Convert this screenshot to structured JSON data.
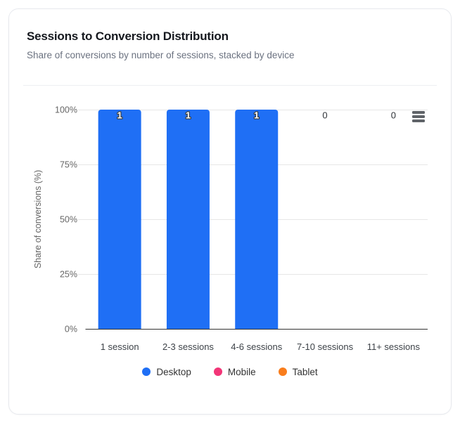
{
  "card": {
    "title": "Sessions to Conversion Distribution",
    "subtitle": "Share of conversions by number of sessions, stacked by device"
  },
  "icons": {
    "menu": "hamburger-menu-icon"
  },
  "chart_data": {
    "type": "bar",
    "stacked": true,
    "orientation": "vertical",
    "categories": [
      "1 session",
      "2-3 sessions",
      "4-6 sessions",
      "7-10 sessions",
      "11+ sessions"
    ],
    "series": [
      {
        "name": "Desktop",
        "color": "#1f6ff5",
        "values": [
          100,
          100,
          100,
          0,
          0
        ]
      },
      {
        "name": "Mobile",
        "color": "#f23577",
        "values": [
          0,
          0,
          0,
          0,
          0
        ]
      },
      {
        "name": "Tablet",
        "color": "#f97d1c",
        "values": [
          0,
          0,
          0,
          0,
          0
        ]
      }
    ],
    "stack_total_labels": [
      "1",
      "1",
      "1",
      "0",
      "0"
    ],
    "xlabel": "",
    "ylabel": "Share of conversions (%)",
    "yticks": [
      "0%",
      "25%",
      "50%",
      "75%",
      "100%"
    ],
    "ylim": [
      0,
      100
    ],
    "grid": true,
    "legend_position": "bottom",
    "colors": {
      "grid_line": "#e6e6e6",
      "axis_line": "#333333",
      "tick_label": "#666666",
      "category_label": "#3d4248",
      "axis_title": "#666666",
      "bar_label_fill": "#ffffff",
      "bar_label_stroke": "#3b4149",
      "zero_label_fill": "#2f3338"
    }
  }
}
